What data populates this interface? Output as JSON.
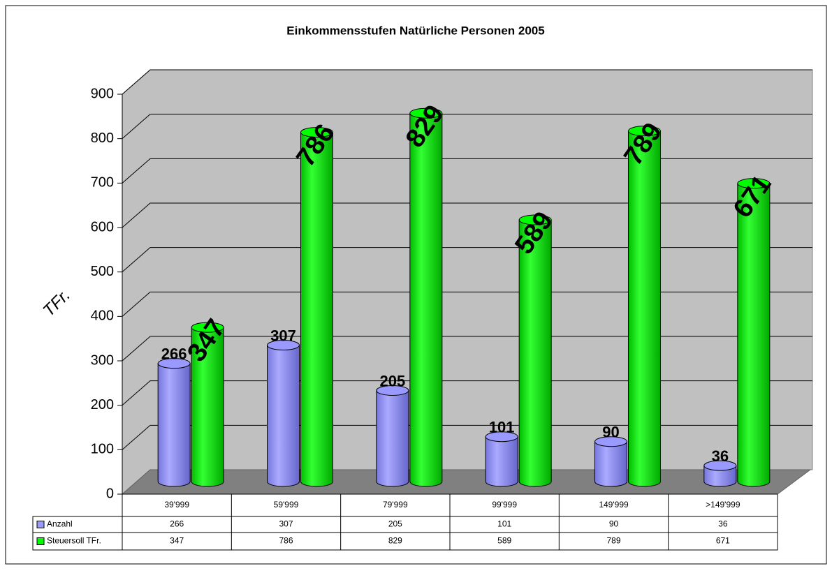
{
  "chart_data": {
    "type": "bar",
    "title": "Einkommensstufen Natürliche Personen 2005",
    "y_label": "TFr.",
    "categories": [
      "39'999",
      "59'999",
      "79'999",
      "99'999",
      "149'999",
      ">149'999"
    ],
    "series": [
      {
        "name": "Anzahl",
        "color": "#9999ff",
        "values": [
          266,
          307,
          205,
          101,
          90,
          36
        ]
      },
      {
        "name": "Steuersoll TFr.",
        "color": "#00ff00",
        "values": [
          347,
          786,
          829,
          589,
          789,
          671
        ]
      }
    ],
    "ylim": [
      0,
      900
    ],
    "yticks": [
      0,
      100,
      200,
      300,
      400,
      500,
      600,
      700,
      800,
      900
    ],
    "grid": true
  }
}
